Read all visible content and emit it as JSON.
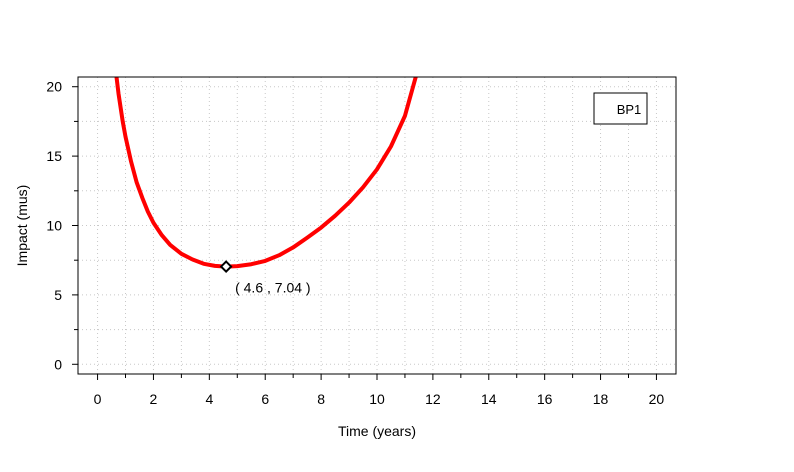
{
  "chart_data": {
    "type": "line",
    "title": "",
    "xlabel": "Time (years)",
    "ylabel": "Impact (mus)",
    "xlim": [
      -0.7,
      20.7
    ],
    "ylim": [
      -0.7,
      20.7
    ],
    "xticks": [
      0,
      2,
      4,
      6,
      8,
      10,
      12,
      14,
      16,
      18,
      20
    ],
    "yticks": [
      0,
      5,
      10,
      15,
      20
    ],
    "grid": true,
    "legend": {
      "position": "top-right",
      "entries": [
        "BP1"
      ]
    },
    "colors": {
      "series": "#ff0000",
      "grid": "#c8c8c8",
      "marker": "#000000"
    },
    "series": [
      {
        "name": "BP1",
        "x": [
          0.6,
          0.75,
          0.9,
          1.0,
          1.2,
          1.4,
          1.6,
          1.8,
          2.0,
          2.3,
          2.6,
          3.0,
          3.4,
          3.8,
          4.2,
          4.6,
          5.0,
          5.5,
          6.0,
          6.5,
          7.0,
          7.5,
          8.0,
          8.5,
          9.0,
          9.5,
          10.0,
          10.5,
          11.0,
          11.4
        ],
        "y": [
          22.0,
          19.5,
          17.5,
          16.4,
          14.6,
          13.1,
          12.0,
          11.0,
          10.2,
          9.3,
          8.6,
          7.96,
          7.55,
          7.24,
          7.09,
          7.04,
          7.07,
          7.21,
          7.45,
          7.86,
          8.42,
          9.12,
          9.85,
          10.7,
          11.65,
          12.75,
          14.05,
          15.7,
          17.9,
          20.8
        ]
      }
    ],
    "marker": {
      "x": 4.6,
      "y": 7.04,
      "label": "( 4.6 , 7.04 )"
    }
  }
}
